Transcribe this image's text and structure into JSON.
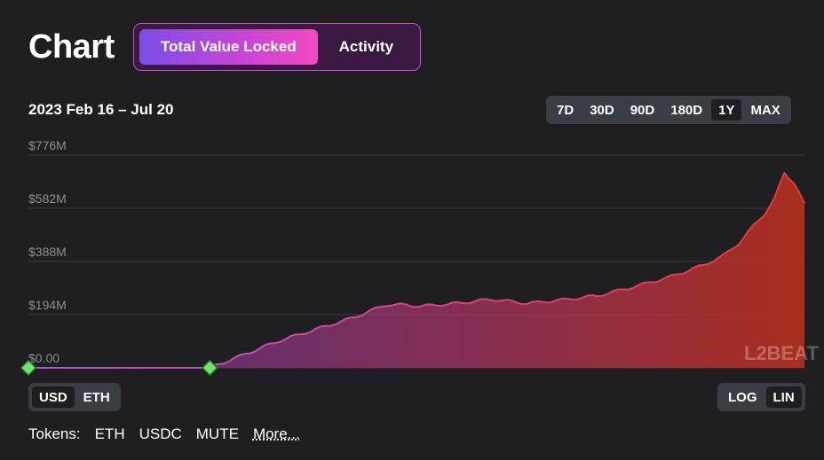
{
  "header": {
    "title": "Chart",
    "tabs": [
      {
        "label": "Total Value Locked",
        "active": true
      },
      {
        "label": "Activity",
        "active": false
      }
    ]
  },
  "range_label": "2023 Feb 16 – Jul 20",
  "time_ranges": [
    {
      "label": "7D",
      "selected": false
    },
    {
      "label": "30D",
      "selected": false
    },
    {
      "label": "90D",
      "selected": false
    },
    {
      "label": "180D",
      "selected": false
    },
    {
      "label": "1Y",
      "selected": true
    },
    {
      "label": "MAX",
      "selected": false
    }
  ],
  "currency": [
    {
      "label": "USD",
      "selected": true
    },
    {
      "label": "ETH",
      "selected": false
    }
  ],
  "scale": [
    {
      "label": "LOG",
      "selected": false
    },
    {
      "label": "LIN",
      "selected": true
    }
  ],
  "tokens": {
    "label": "Tokens:",
    "items": [
      "ETH",
      "USDC",
      "MUTE"
    ],
    "more_label": "More..."
  },
  "watermark": "L2BEAT",
  "colors": {
    "background": "#1f1f21",
    "gradient_start": "#b452e0",
    "gradient_end": "#e53b2d",
    "marker": "#6ee56e"
  },
  "chart_data": {
    "type": "area",
    "title": "",
    "xlabel": "",
    "ylabel": "",
    "x_range": [
      "2023-02-16",
      "2023-07-20"
    ],
    "ylim": [
      0,
      776
    ],
    "y_unit": "M USD",
    "y_ticks": [
      {
        "value": 776,
        "label": "$776M"
      },
      {
        "value": 582,
        "label": "$582M"
      },
      {
        "value": 388,
        "label": "$388M"
      },
      {
        "value": 194,
        "label": "$194M"
      },
      {
        "value": 0,
        "label": "$0.00"
      }
    ],
    "grid": true,
    "markers": [
      "2023-02-16",
      "2023-03-24"
    ],
    "series": [
      {
        "x": [
          "2023-02-16",
          "2023-02-23",
          "2023-03-02",
          "2023-03-09",
          "2023-03-16",
          "2023-03-24",
          "2023-03-31",
          "2023-04-07",
          "2023-04-14",
          "2023-04-21",
          "2023-04-28",
          "2023-05-01",
          "2023-05-05",
          "2023-05-12",
          "2023-05-19",
          "2023-05-26",
          "2023-06-02",
          "2023-06-09",
          "2023-06-16",
          "2023-06-23",
          "2023-06-30",
          "2023-07-04",
          "2023-07-07",
          "2023-07-10",
          "2023-07-12",
          "2023-07-14",
          "2023-07-16",
          "2023-07-18",
          "2023-07-20"
        ],
        "values": [
          0,
          0,
          0,
          0,
          0,
          0,
          50,
          100,
          140,
          180,
          230,
          230,
          225,
          235,
          250,
          235,
          248,
          263,
          295,
          330,
          375,
          410,
          455,
          520,
          560,
          615,
          710,
          675,
          600
        ]
      }
    ]
  }
}
